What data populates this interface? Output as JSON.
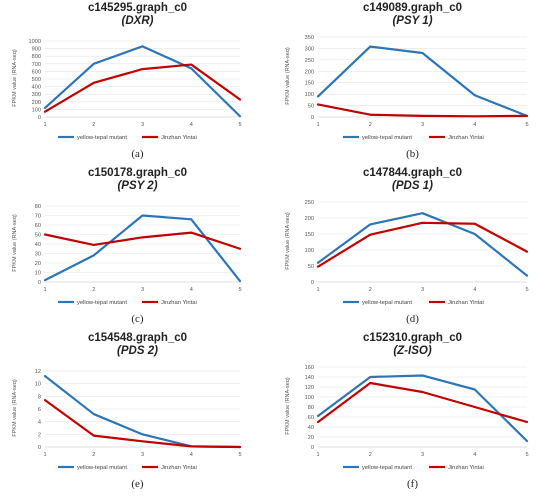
{
  "panels": [
    {
      "label": "(a)",
      "title": "c145295.graph_c0",
      "gene": "(DXR)",
      "chart_data": {
        "type": "line",
        "x": [
          1,
          2,
          3,
          4,
          5
        ],
        "ylabel": "FPKM value (RNA-seq)",
        "ylim": [
          0,
          1000
        ],
        "yticks": [
          0,
          100,
          200,
          300,
          400,
          500,
          600,
          700,
          800,
          900,
          1000
        ],
        "series": [
          {
            "name": "yellow-tepal mutant",
            "color": "#2e75b6",
            "values": [
              120,
              700,
              930,
              640,
              10
            ]
          },
          {
            "name": "Jinzhan Yintai",
            "color": "#c00000",
            "values": [
              70,
              450,
              630,
              690,
              230
            ]
          }
        ]
      }
    },
    {
      "label": "(b)",
      "title": "c149089.graph_c0",
      "gene": "(PSY 1)",
      "chart_data": {
        "type": "line",
        "x": [
          1,
          2,
          3,
          4,
          5
        ],
        "ylabel": "FPKM value (RNA-seq)",
        "ylim": [
          0,
          350
        ],
        "yticks": [
          0,
          50,
          100,
          150,
          200,
          250,
          300,
          350
        ],
        "series": [
          {
            "name": "yellow-tepal mutant",
            "color": "#2e75b6",
            "values": [
              90,
              308,
              280,
              95,
              5
            ]
          },
          {
            "name": "Jinzhan Yintai",
            "color": "#c00000",
            "values": [
              55,
              10,
              5,
              3,
              5
            ]
          }
        ]
      }
    },
    {
      "label": "(c)",
      "title": "c150178.graph_c0",
      "gene": "(PSY 2)",
      "chart_data": {
        "type": "line",
        "x": [
          1,
          2,
          3,
          4,
          5
        ],
        "ylabel": "FPKM value (RNA-seq)",
        "ylim": [
          0,
          80
        ],
        "yticks": [
          0,
          10,
          20,
          30,
          40,
          50,
          60,
          70,
          80
        ],
        "series": [
          {
            "name": "yellow-tepal mutant",
            "color": "#2e75b6",
            "values": [
              2,
              28,
              70,
              66,
              1
            ]
          },
          {
            "name": "Jinzhan Yintai",
            "color": "#c00000",
            "values": [
              50,
              39,
              47,
              52,
              35
            ]
          }
        ]
      }
    },
    {
      "label": "(d)",
      "title": "c147844.graph_c0",
      "gene": "(PDS 1)",
      "chart_data": {
        "type": "line",
        "x": [
          1,
          2,
          3,
          4,
          5
        ],
        "ylabel": "FPKM value (RNA-seq)",
        "ylim": [
          0,
          250
        ],
        "yticks": [
          0,
          50,
          100,
          150,
          200,
          250
        ],
        "series": [
          {
            "name": "yellow-tepal mutant",
            "color": "#2e75b6",
            "values": [
              60,
              180,
              215,
              150,
              20
            ]
          },
          {
            "name": "Jinzhan Yintai",
            "color": "#c00000",
            "values": [
              48,
              148,
              185,
              182,
              95
            ]
          }
        ]
      }
    },
    {
      "label": "(e)",
      "title": "c154548.graph_c0",
      "gene": "(PDS 2)",
      "chart_data": {
        "type": "line",
        "x": [
          1,
          2,
          3,
          4,
          5
        ],
        "ylabel": "FPKM value (RNA-seq)",
        "ylim": [
          0,
          12
        ],
        "yticks": [
          0,
          2,
          4,
          6,
          8,
          10,
          12
        ],
        "series": [
          {
            "name": "yellow-tepal mutant",
            "color": "#2e75b6",
            "values": [
              11.2,
              5.2,
              2.0,
              0.1,
              0.0
            ]
          },
          {
            "name": "Jinzhan Yintai",
            "color": "#c00000",
            "values": [
              7.4,
              1.8,
              0.9,
              0.1,
              0.0
            ]
          }
        ]
      }
    },
    {
      "label": "(f)",
      "title": "c152310.graph_c0",
      "gene": "(Z-ISO)",
      "chart_data": {
        "type": "line",
        "x": [
          1,
          2,
          3,
          4,
          5
        ],
        "ylabel": "FPKM value (RNA-seq)",
        "ylim": [
          0,
          160
        ],
        "yticks": [
          0,
          20,
          40,
          60,
          80,
          100,
          120,
          140,
          160
        ],
        "series": [
          {
            "name": "yellow-tepal mutant",
            "color": "#2e75b6",
            "values": [
              62,
              140,
              143,
              115,
              12
            ]
          },
          {
            "name": "Jinzhan Yintai",
            "color": "#c00000",
            "values": [
              50,
              128,
              110,
              80,
              50
            ]
          }
        ]
      }
    }
  ]
}
